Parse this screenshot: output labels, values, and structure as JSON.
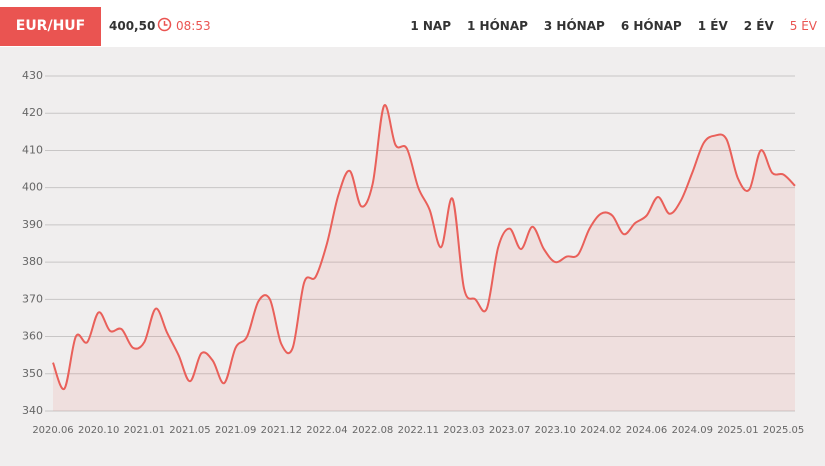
{
  "header": {
    "pair": "EUR/HUF",
    "price": "400,50",
    "time": "08:53"
  },
  "ranges": {
    "items": [
      "1 NAP",
      "1 HÓNAP",
      "3 HÓNAP",
      "6 HÓNAP",
      "1 ÉV",
      "2 ÉV",
      "5 ÉV"
    ],
    "active": 6
  },
  "chart_data": {
    "type": "line",
    "categories": [
      "2020.06",
      null,
      null,
      null,
      "2020.10",
      null,
      null,
      null,
      "2021.01",
      null,
      null,
      null,
      "2021.05",
      null,
      null,
      null,
      "2021.09",
      null,
      null,
      null,
      "2021.12",
      null,
      null,
      null,
      "2022.04",
      null,
      null,
      null,
      "2022.08",
      null,
      null,
      null,
      "2022.11",
      null,
      null,
      null,
      "2023.03",
      null,
      null,
      null,
      "2023.07",
      null,
      null,
      null,
      "2023.10",
      null,
      null,
      null,
      "2024.02",
      null,
      null,
      null,
      "2024.06",
      null,
      null,
      null,
      "2024.09",
      null,
      null,
      null,
      "2025.01",
      null,
      null,
      null,
      "2025.05",
      null
    ],
    "values": [
      353,
      346,
      360,
      358.5,
      366.5,
      361.5,
      362,
      357,
      358.5,
      367.5,
      361,
      355,
      348,
      355.5,
      353.5,
      347.5,
      357,
      360,
      369.5,
      370,
      358,
      357,
      374.5,
      376,
      385,
      398,
      404.5,
      395,
      401,
      422,
      411.5,
      410.5,
      400,
      394,
      384,
      397,
      373,
      370,
      367.5,
      384,
      389,
      383.5,
      389.5,
      383.5,
      380,
      381.5,
      382,
      389,
      393,
      392.5,
      387.5,
      390.5,
      392.5,
      397.5,
      393,
      396.5,
      404,
      412,
      414,
      413,
      402.5,
      399.5,
      410,
      404,
      403.5,
      400.5
    ],
    "color": "#e9605a",
    "ylim": [
      337,
      433
    ],
    "yticks": [
      340,
      350,
      360,
      370,
      380,
      390,
      400,
      410,
      420,
      430
    ],
    "grid": true
  }
}
